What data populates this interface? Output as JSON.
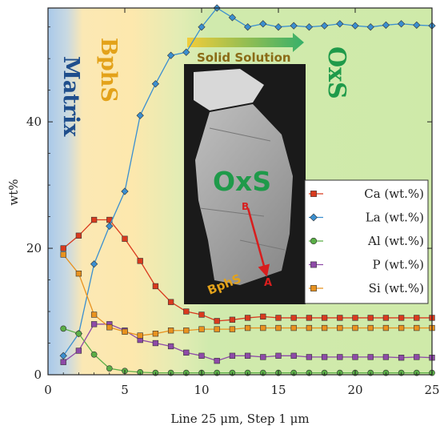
{
  "chart_data": {
    "type": "line",
    "xlabel": "Line 25 μm, Step 1 μm",
    "ylabel": "wt%",
    "xlim": [
      0,
      25
    ],
    "ylim": [
      0,
      58
    ],
    "xticks": [
      0,
      5,
      10,
      15,
      20,
      25
    ],
    "yticks": [
      0,
      20,
      40
    ],
    "grid": false,
    "legend_position": "right",
    "regions": [
      {
        "label": "Matrix",
        "from": 0,
        "to": 1.5,
        "color": "#1f4e8c",
        "fill": "#9fc4e6"
      },
      {
        "label": "BphS",
        "from": 1.5,
        "to": 5.5,
        "color": "#e3a21a",
        "fill": "#fde7a6"
      },
      {
        "label": "OxS",
        "from": 5.5,
        "to": 25,
        "color": "#1f9a4a",
        "fill": "#cdeaa8"
      }
    ],
    "annotation": {
      "label": "Solid Solution",
      "from": 9.2,
      "to": 16.5,
      "color_start": "#e6c23a",
      "color_end": "#3cb06a"
    },
    "inset": {
      "label": "OxS",
      "sublabel": "BphS",
      "marker_a": "A",
      "marker_b": "B"
    },
    "series": [
      {
        "name": "Ca (wt.%)",
        "color": "#d93a1e",
        "marker": "square",
        "x": [
          1,
          2,
          3,
          4,
          5,
          6,
          7,
          8,
          9,
          10,
          11,
          12,
          13,
          14,
          15,
          16,
          17,
          18,
          19,
          20,
          21,
          22,
          23,
          24,
          25
        ],
        "y": [
          20,
          22,
          24.5,
          24.5,
          21.5,
          18,
          14,
          11.5,
          10,
          9.5,
          8.5,
          8.7,
          9,
          9.2,
          9,
          9,
          9,
          9,
          9,
          9,
          9,
          9,
          9,
          9,
          9
        ]
      },
      {
        "name": "La (wt.%)",
        "color": "#3b8fd0",
        "marker": "diamond",
        "x": [
          1,
          2,
          3,
          4,
          5,
          6,
          7,
          8,
          9,
          10,
          11,
          12,
          13,
          14,
          15,
          16,
          17,
          18,
          19,
          20,
          21,
          22,
          23,
          24,
          25
        ],
        "y": [
          3,
          6.5,
          17.5,
          23.5,
          29,
          41,
          46,
          50.5,
          51,
          55,
          58,
          56.5,
          55,
          55.5,
          55,
          55.2,
          55,
          55.2,
          55.5,
          55.2,
          55,
          55.3,
          55.5,
          55.3,
          55.2
        ]
      },
      {
        "name": "Al (wt.%)",
        "color": "#5aae46",
        "marker": "circle",
        "x": [
          1,
          2,
          3,
          4,
          5,
          6,
          7,
          8,
          9,
          10,
          11,
          12,
          13,
          14,
          15,
          16,
          17,
          18,
          19,
          20,
          21,
          22,
          23,
          24,
          25
        ],
        "y": [
          7.3,
          6.5,
          3.2,
          1,
          0.6,
          0.4,
          0.3,
          0.3,
          0.3,
          0.3,
          0.3,
          0.3,
          0.3,
          0.3,
          0.3,
          0.3,
          0.3,
          0.3,
          0.3,
          0.3,
          0.3,
          0.3,
          0.3,
          0.3,
          0.3
        ]
      },
      {
        "name": "P (wt.%)",
        "color": "#8e4aa8",
        "marker": "square",
        "x": [
          1,
          2,
          3,
          4,
          5,
          6,
          7,
          8,
          9,
          10,
          11,
          12,
          13,
          14,
          15,
          16,
          17,
          18,
          19,
          20,
          21,
          22,
          23,
          24,
          25
        ],
        "y": [
          2,
          3.8,
          8,
          8,
          7,
          5.5,
          5,
          4.5,
          3.5,
          3,
          2.2,
          3,
          3,
          2.8,
          3,
          3,
          2.8,
          2.8,
          2.8,
          2.8,
          2.8,
          2.8,
          2.7,
          2.8,
          2.7
        ]
      },
      {
        "name": "Si (wt.%)",
        "color": "#e8921f",
        "marker": "square",
        "x": [
          1,
          2,
          3,
          4,
          5,
          6,
          7,
          8,
          9,
          10,
          11,
          12,
          13,
          14,
          15,
          16,
          17,
          18,
          19,
          20,
          21,
          22,
          23,
          24,
          25
        ],
        "y": [
          19,
          16,
          9.5,
          7.5,
          6.8,
          6.2,
          6.5,
          7,
          7,
          7.2,
          7.2,
          7.2,
          7.4,
          7.4,
          7.4,
          7.4,
          7.4,
          7.4,
          7.4,
          7.4,
          7.4,
          7.4,
          7.4,
          7.4,
          7.4
        ]
      }
    ]
  }
}
